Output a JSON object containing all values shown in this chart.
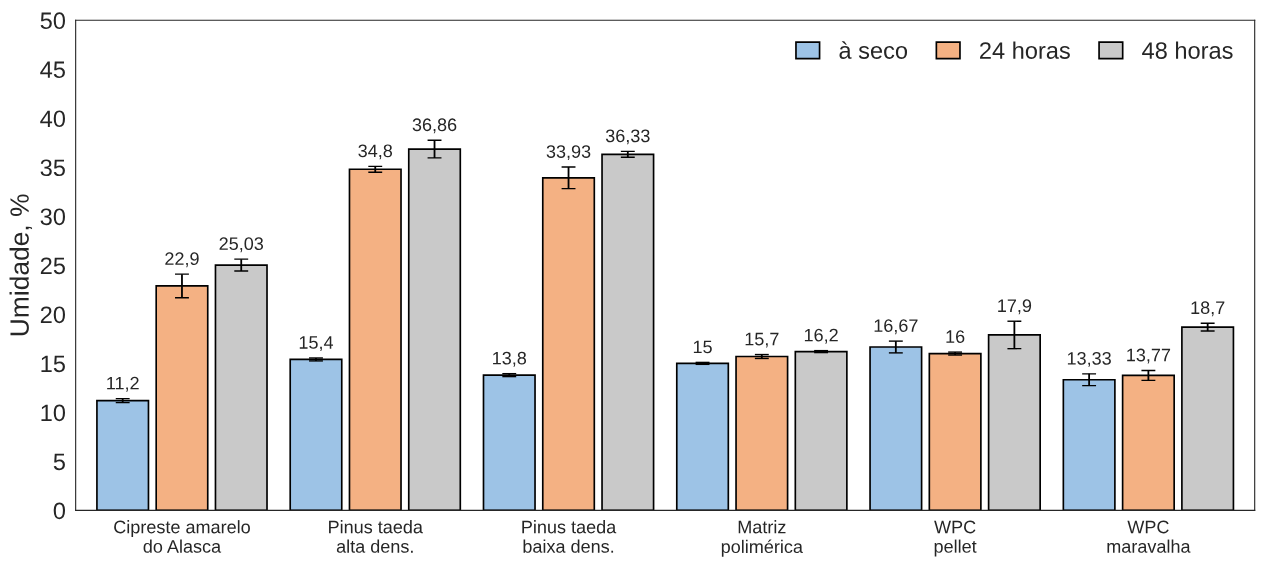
{
  "chart_data": {
    "type": "bar",
    "ylabel": "Umidade, %",
    "categories": [
      "Cipreste amarelo\ndo Alasca",
      "Pinus taeda\nalta dens.",
      "Pinus taeda\nbaixa dens.",
      "Matriz\npolimérica",
      "WPC\npellet",
      "WPC\nmaravalha"
    ],
    "series": [
      {
        "name": "à seco",
        "color": "#9dc3e6",
        "values": [
          11.2,
          15.4,
          13.8,
          15,
          16.67,
          13.33
        ],
        "errors": [
          0.2,
          0.15,
          0.15,
          0.1,
          0.6,
          0.6
        ],
        "value_labels": [
          "11,2",
          "15,4",
          "13,8",
          "15",
          "16,67",
          "13,33"
        ]
      },
      {
        "name": "24 horas",
        "color": "#f4b183",
        "values": [
          22.9,
          34.8,
          33.93,
          15.7,
          16,
          13.77
        ],
        "errors": [
          1.2,
          0.3,
          1.1,
          0.2,
          0.15,
          0.5
        ],
        "value_labels": [
          "22,9",
          "34,8",
          "33,93",
          "15,7",
          "16",
          "13,77"
        ]
      },
      {
        "name": "48 horas",
        "color": "#c9c9c9",
        "values": [
          25.03,
          36.86,
          36.33,
          16.2,
          17.9,
          18.7
        ],
        "errors": [
          0.6,
          0.9,
          0.3,
          0.1,
          1.4,
          0.4
        ],
        "value_labels": [
          "25,03",
          "36,86",
          "36,33",
          "16,2",
          "17,9",
          "18,7"
        ]
      }
    ],
    "ylim": [
      0,
      50
    ],
    "yticks": [
      0,
      5,
      10,
      15,
      20,
      25,
      30,
      35,
      40,
      45,
      50
    ],
    "grid": false,
    "legend": "top right"
  }
}
